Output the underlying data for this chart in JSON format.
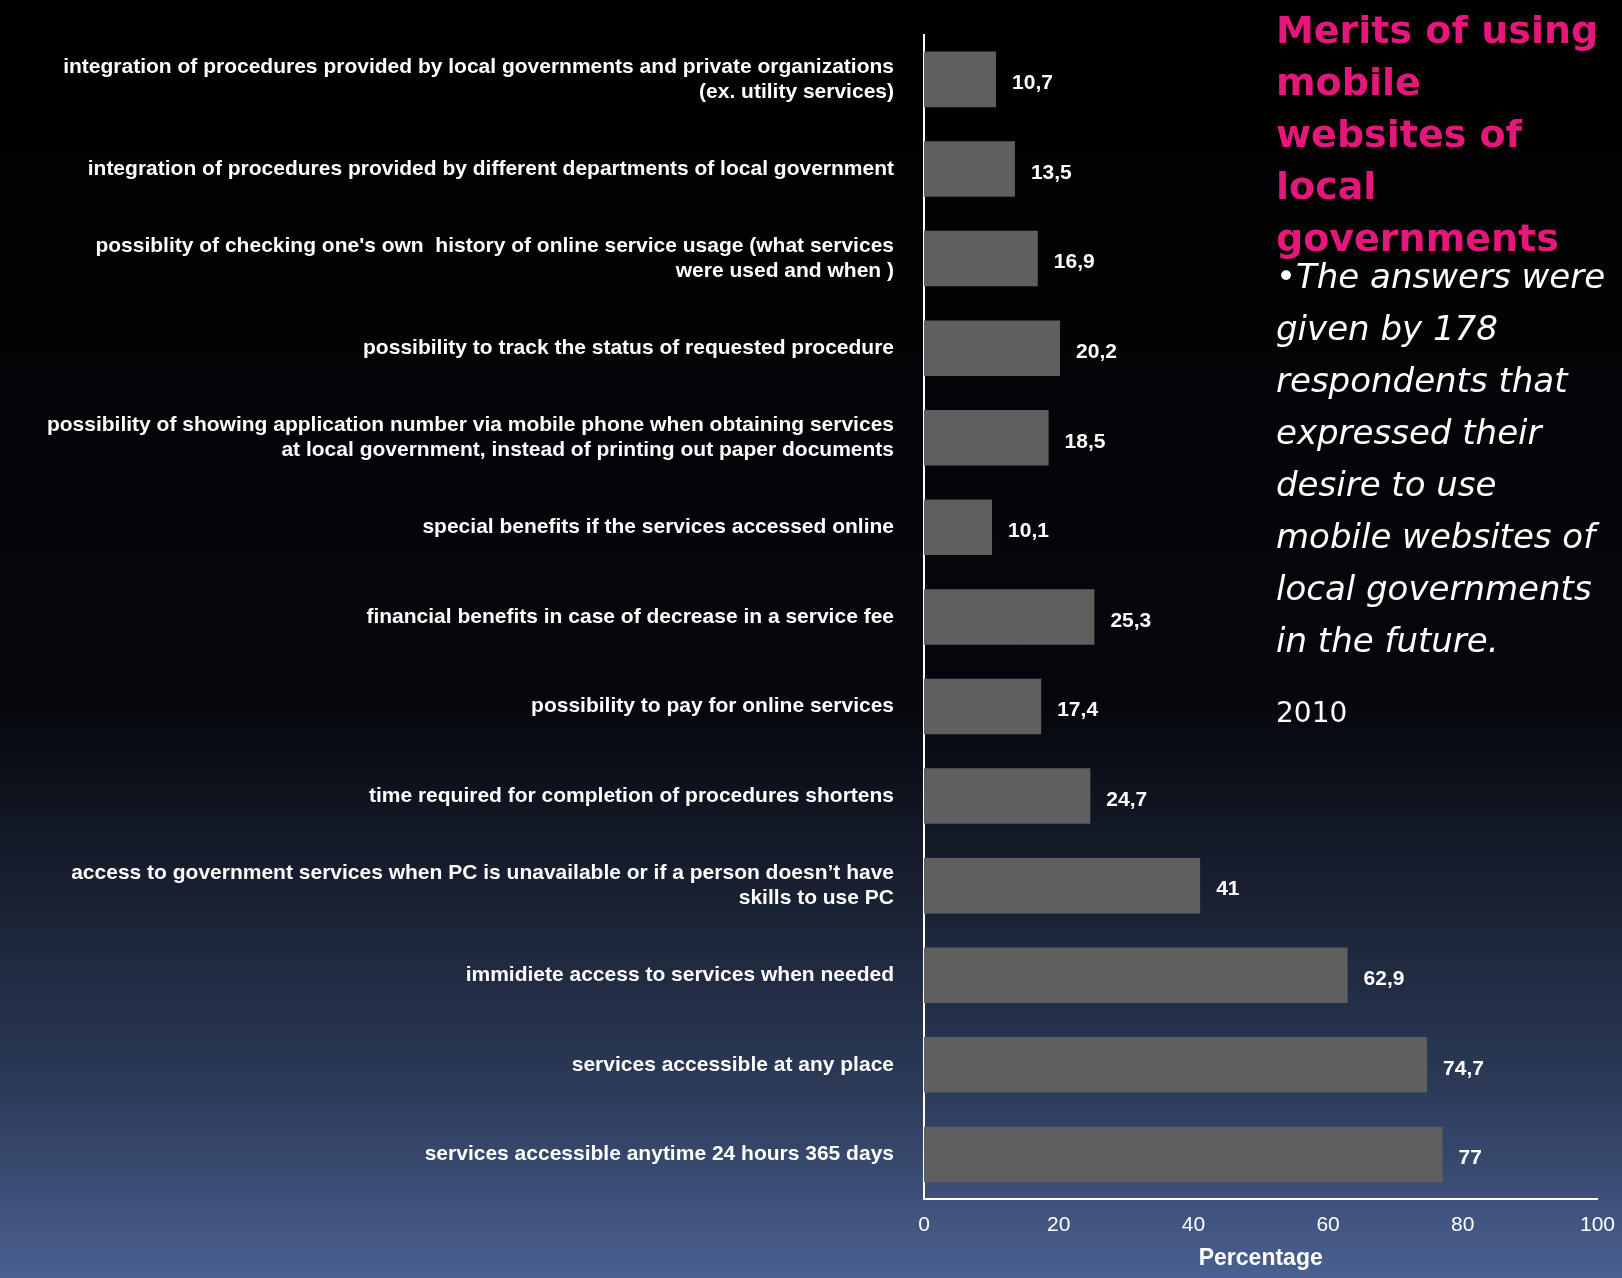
{
  "chart_data": {
    "type": "bar",
    "orientation": "horizontal",
    "title": "Merits of using mobile websites of local governments",
    "xlabel": "Percentage",
    "categories": [
      "integration of procedures provided by local governments and private organizations (ex. utility services)",
      "integration of procedures provided by different departments of local government",
      "possiblity of checking one's own  history of online service usage (what services were used and when )",
      "possibility to track the status of requested procedure",
      "possibility of showing application number via mobile phone when obtaining services at local government, instead of printing out paper documents",
      "special benefits if the services accessed online",
      "financial benefits in case of decrease in a service fee",
      "possibility to pay for online services",
      "time required for completion of procedures shortens",
      "access to government services when PC is unavailable or if a person doesn’t have skills to use PC",
      "immidiete access to services when needed",
      "services accessible at any place",
      "services accessible anytime 24 hours 365 days"
    ],
    "values": [
      10.7,
      13.5,
      16.9,
      20.2,
      18.5,
      10.1,
      25.3,
      17.4,
      24.7,
      41,
      62.9,
      74.7,
      77
    ],
    "value_labels": [
      "10,7",
      "13,5",
      "16,9",
      "20,2",
      "18,5",
      "10,1",
      "25,3",
      "17,4",
      "24,7",
      "41",
      "62,9",
      "74,7",
      "77"
    ],
    "color": "#5f5f5f",
    "xlim": [
      0,
      100
    ],
    "xticks": [
      0,
      20,
      40,
      60,
      80,
      100
    ],
    "grid": false,
    "legend": false,
    "annotations": [
      "•The answers were given by 178 respondents that expressed their desire to use mobile websites of local governments in the future.",
      "2010"
    ]
  }
}
